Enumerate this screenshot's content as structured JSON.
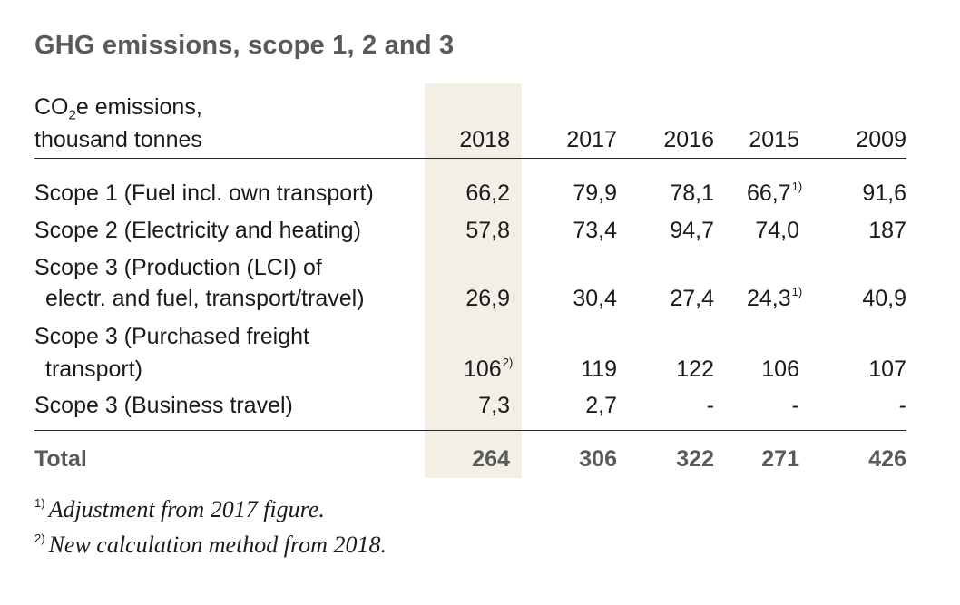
{
  "title": "GHG emissions, scope 1, 2 and 3",
  "header": {
    "unit_line1_pre": "CO",
    "unit_line1_sub": "2",
    "unit_line1_post": "e emissions,",
    "unit_line2": "thousand tonnes",
    "years": [
      "2018",
      "2017",
      "2016",
      "2015",
      "2009"
    ]
  },
  "rows": [
    {
      "label": "Scope 1 (Fuel incl. own transport)",
      "label_line2": "",
      "values": [
        "66,2",
        "79,9",
        "78,1",
        "66,7",
        "91,6"
      ],
      "notes": [
        "",
        "",
        "",
        "1)",
        ""
      ]
    },
    {
      "label": "Scope 2 (Electricity and heating)",
      "label_line2": "",
      "values": [
        "57,8",
        "73,4",
        "94,7",
        "74,0",
        "187"
      ],
      "notes": [
        "",
        "",
        "",
        "",
        ""
      ]
    },
    {
      "label": "Scope 3 (Production (LCI) of",
      "label_line2": "electr. and fuel, transport/travel)",
      "values": [
        "26,9",
        "30,4",
        "27,4",
        "24,3",
        "40,9"
      ],
      "notes": [
        "",
        "",
        "",
        "1)",
        ""
      ]
    },
    {
      "label": "Scope 3 (Purchased freight",
      "label_line2": "transport)",
      "values": [
        "106",
        "119",
        "122",
        "106",
        "107"
      ],
      "notes": [
        "2)",
        "",
        "",
        "",
        ""
      ]
    },
    {
      "label": "Scope 3 (Business travel)",
      "label_line2": "",
      "values": [
        "7,3",
        "2,7",
        "-",
        "-",
        "-"
      ],
      "notes": [
        "",
        "",
        "",
        "",
        ""
      ]
    }
  ],
  "total": {
    "label": "Total",
    "values": [
      "264",
      "306",
      "322",
      "271",
      "426"
    ]
  },
  "footnotes": [
    {
      "mark": "1)",
      "text": "Adjustment from 2017 figure."
    },
    {
      "mark": "2)",
      "text": "New calculation method from 2018."
    }
  ]
}
